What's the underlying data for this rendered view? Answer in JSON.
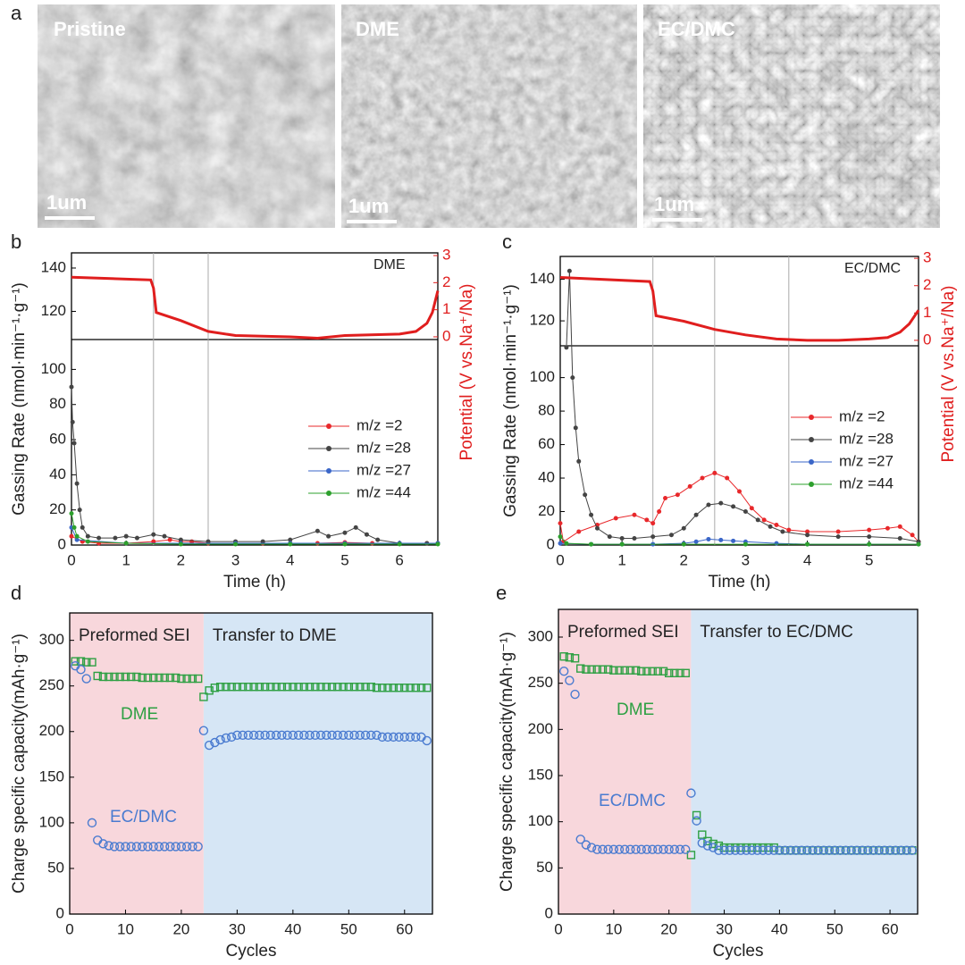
{
  "panel_labels": [
    "a",
    "b",
    "c",
    "d",
    "e"
  ],
  "sem_images": [
    {
      "label": "Pristine",
      "scale": "1um"
    },
    {
      "label": "DME",
      "scale": "1um"
    },
    {
      "label": "EC/DMC",
      "scale": "1um"
    }
  ],
  "chart_data": [
    {
      "type": "line",
      "annotation": "DME",
      "x_label": "Time (h)",
      "y_label": "Gassing Rate (nmol·min⁻¹·g⁻¹)",
      "y2_label": "Potential (V vs.Na⁺/Na)",
      "xlim": [
        0,
        6.7
      ],
      "xticks": [
        0,
        1,
        2,
        3,
        4,
        5,
        6
      ],
      "ylim": [
        0,
        117
      ],
      "yticks": [
        0,
        20,
        40,
        60,
        80,
        100
      ],
      "ylim_top": [
        107,
        147
      ],
      "yticks_top": [
        120,
        140
      ],
      "y2lim": [
        -0.1,
        3.1
      ],
      "y2ticks": [
        0,
        1,
        2,
        3
      ],
      "vlines": [
        1.5,
        2.5
      ],
      "series": [
        {
          "name": "m/z =2",
          "color": "#e8282b",
          "x": [
            0,
            0.2,
            0.5,
            1,
            1.5,
            1.8,
            2,
            2.2,
            2.5,
            3,
            3.5,
            4,
            4.5,
            5,
            5.5,
            6,
            6.5,
            6.7
          ],
          "values": [
            5,
            2,
            1,
            1,
            2,
            3,
            2,
            2,
            1,
            1,
            1,
            1,
            1,
            1.5,
            1,
            1,
            1,
            1
          ]
        },
        {
          "name": "m/z =28",
          "color": "#444444",
          "x": [
            0,
            0.02,
            0.05,
            0.1,
            0.15,
            0.2,
            0.3,
            0.5,
            0.8,
            1,
            1.2,
            1.5,
            1.7,
            2,
            2.5,
            3,
            3.5,
            4,
            4.5,
            4.7,
            5,
            5.2,
            5.4,
            5.6,
            6,
            6.5,
            6.7
          ],
          "values": [
            90,
            70,
            58,
            35,
            20,
            10,
            5,
            4,
            4,
            5,
            4,
            6,
            5,
            3,
            2,
            2,
            2,
            3,
            8,
            5,
            7,
            10,
            6,
            3,
            1,
            1,
            1
          ]
        },
        {
          "name": "m/z =27",
          "color": "#3a66c8",
          "x": [
            0,
            0.1,
            1,
            2,
            3,
            4,
            5,
            6,
            6.7
          ],
          "values": [
            10,
            3,
            1,
            1,
            1,
            1,
            1,
            1,
            1
          ]
        },
        {
          "name": "m/z =44",
          "color": "#2ca02c",
          "x": [
            0,
            0.05,
            0.1,
            0.3,
            1,
            2,
            3,
            4,
            5,
            6,
            6.7
          ],
          "values": [
            18,
            10,
            5,
            2,
            1,
            0.5,
            0.5,
            0.5,
            0.5,
            0.5,
            0.5
          ]
        },
        {
          "axis": "y2",
          "color": "#e01e1e",
          "x": [
            0,
            1.45,
            1.5,
            1.55,
            2,
            2.5,
            3,
            4,
            4.5,
            5,
            6,
            6.3,
            6.5,
            6.6,
            6.7
          ],
          "values": [
            2.2,
            2.1,
            1.8,
            0.9,
            0.6,
            0.2,
            0.05,
            0,
            -0.05,
            0.05,
            0.1,
            0.2,
            0.5,
            0.9,
            1.7
          ]
        }
      ]
    },
    {
      "type": "line",
      "annotation": "EC/DMC",
      "x_label": "Time (h)",
      "y_label": "Gassing Rate (nmol·min⁻¹·g⁻¹)",
      "y2_label": "Potential (V vs.Na⁺/Na)",
      "xlim": [
        0,
        5.8
      ],
      "xticks": [
        0,
        1,
        2,
        3,
        4,
        5
      ],
      "ylim": [
        0,
        119
      ],
      "yticks": [
        0,
        20,
        40,
        60,
        80,
        100
      ],
      "ylim_top": [
        108,
        151
      ],
      "yticks_top": [
        120,
        140
      ],
      "y2lim": [
        -0.2,
        3.07
      ],
      "y2ticks": [
        0,
        1,
        2,
        3
      ],
      "vlines": [
        1.5,
        2.5,
        3.7
      ],
      "series": [
        {
          "name": "m/z =2",
          "color": "#e8282b",
          "x": [
            0,
            0.05,
            0.3,
            0.6,
            0.9,
            1.2,
            1.4,
            1.5,
            1.6,
            1.7,
            1.9,
            2.1,
            2.3,
            2.5,
            2.7,
            2.9,
            3.1,
            3.3,
            3.5,
            3.7,
            4,
            4.5,
            5,
            5.3,
            5.5,
            5.7,
            5.8
          ],
          "values": [
            13,
            2,
            8,
            12,
            16,
            18,
            15,
            13,
            20,
            28,
            30,
            35,
            40,
            43,
            40,
            32,
            22,
            15,
            12,
            9,
            8,
            8,
            9,
            10,
            11,
            6,
            2
          ]
        },
        {
          "name": "m/z =28",
          "color": "#444444",
          "x": [
            0.1,
            0.15,
            0.2,
            0.25,
            0.3,
            0.4,
            0.5,
            0.6,
            0.8,
            1,
            1.2,
            1.5,
            1.8,
            2,
            2.2,
            2.4,
            2.6,
            2.8,
            3,
            3.2,
            3.4,
            3.6,
            4,
            4.5,
            5,
            5.5,
            5.8
          ],
          "values": [
            118,
            144,
            100,
            70,
            50,
            30,
            18,
            10,
            5,
            4,
            4,
            5,
            6,
            10,
            18,
            24,
            25,
            23,
            20,
            15,
            11,
            8,
            6,
            5,
            5,
            4,
            2
          ]
        },
        {
          "name": "m/z =27",
          "color": "#3a66c8",
          "x": [
            0,
            0.5,
            1,
            1.5,
            2,
            2.2,
            2.4,
            2.6,
            2.8,
            3,
            3.5,
            4,
            5,
            5.8
          ],
          "values": [
            1,
            0.5,
            0.5,
            0.5,
            1,
            2,
            3.5,
            3,
            2.5,
            2,
            1,
            0.5,
            0.5,
            0.5
          ]
        },
        {
          "name": "m/z =44",
          "color": "#2ca02c",
          "x": [
            0,
            0.1,
            0.5,
            1,
            2,
            3,
            4,
            5,
            5.8
          ],
          "values": [
            5,
            1,
            0.5,
            0.5,
            0.5,
            0.5,
            0.5,
            0.5,
            0.5
          ]
        },
        {
          "axis": "y2",
          "color": "#e01e1e",
          "x": [
            0,
            1.45,
            1.5,
            1.55,
            2,
            2.5,
            3,
            3.5,
            4,
            4.5,
            5,
            5.3,
            5.5,
            5.65,
            5.8
          ],
          "values": [
            2.3,
            2.15,
            1.8,
            0.9,
            0.7,
            0.4,
            0.2,
            0.05,
            0,
            0,
            0.05,
            0.1,
            0.3,
            0.6,
            1.1
          ]
        }
      ]
    },
    {
      "type": "scatter",
      "x_label": "Cycles",
      "y_label": "Charge specific capacity(mAh·g⁻¹)",
      "xlim": [
        0,
        65
      ],
      "xticks": [
        0,
        10,
        20,
        30,
        40,
        50,
        60
      ],
      "ylim": [
        0,
        330
      ],
      "yticks": [
        0,
        50,
        100,
        150,
        200,
        250,
        300
      ],
      "regions": [
        {
          "label": "Preformed SEI",
          "from": 0,
          "to": 24,
          "color": "#f8d7dc"
        },
        {
          "label": "Transfer to DME",
          "from": 24,
          "to": 65,
          "color": "#d6e6f5"
        }
      ],
      "x": [
        1,
        2,
        3,
        4,
        5,
        6,
        7,
        8,
        9,
        10,
        11,
        12,
        13,
        14,
        15,
        16,
        17,
        18,
        19,
        20,
        21,
        22,
        23,
        24,
        25,
        26,
        27,
        28,
        29,
        30,
        31,
        32,
        33,
        34,
        35,
        36,
        37,
        38,
        39,
        40,
        41,
        42,
        43,
        44,
        45,
        46,
        47,
        48,
        49,
        50,
        51,
        52,
        53,
        54,
        55,
        56,
        57,
        58,
        59,
        60,
        61,
        62,
        63,
        64
      ],
      "series": [
        {
          "name": "DME",
          "color": "#2ea043",
          "marker": "square",
          "values": [
            277,
            277,
            276,
            276,
            261,
            260,
            260,
            260,
            260,
            260,
            260,
            260,
            259,
            259,
            259,
            259,
            259,
            259,
            259,
            258,
            258,
            258,
            258,
            238,
            245,
            248,
            249,
            249,
            249,
            249,
            249,
            249,
            249,
            249,
            249,
            249,
            249,
            249,
            249,
            249,
            249,
            249,
            249,
            249,
            249,
            249,
            249,
            249,
            249,
            249,
            249,
            249,
            249,
            249,
            248,
            248,
            248,
            248,
            248,
            248,
            248,
            248,
            248,
            248
          ]
        },
        {
          "name": "EC/DMC",
          "color": "#4a7bd0",
          "marker": "circle",
          "values": [
            272,
            268,
            258,
            100,
            81,
            77,
            75,
            74,
            74,
            74,
            74,
            74,
            74,
            74,
            74,
            74,
            74,
            74,
            74,
            74,
            74,
            74,
            74,
            201,
            185,
            188,
            191,
            193,
            194,
            196,
            196,
            196,
            196,
            196,
            196,
            196,
            196,
            196,
            196,
            196,
            196,
            196,
            196,
            196,
            196,
            196,
            196,
            196,
            196,
            196,
            196,
            196,
            196,
            196,
            196,
            194,
            194,
            194,
            194,
            194,
            194,
            194,
            194,
            190
          ]
        }
      ]
    },
    {
      "type": "scatter",
      "x_label": "Cycles",
      "y_label": "Charge specific capacity(mAh·g⁻¹)",
      "xlim": [
        0,
        65
      ],
      "xticks": [
        0,
        10,
        20,
        30,
        40,
        50,
        60
      ],
      "ylim": [
        0,
        330
      ],
      "yticks": [
        0,
        50,
        100,
        150,
        200,
        250,
        300
      ],
      "regions": [
        {
          "label": "Preformed SEI",
          "from": 0,
          "to": 24,
          "color": "#f8d7dc"
        },
        {
          "label": "Transfer to EC/DMC",
          "from": 24,
          "to": 65,
          "color": "#d6e6f5"
        }
      ],
      "x": [
        1,
        2,
        3,
        4,
        5,
        6,
        7,
        8,
        9,
        10,
        11,
        12,
        13,
        14,
        15,
        16,
        17,
        18,
        19,
        20,
        21,
        22,
        23,
        24,
        25,
        26,
        27,
        28,
        29,
        30,
        31,
        32,
        33,
        34,
        35,
        36,
        37,
        38,
        39,
        40,
        41,
        42,
        43,
        44,
        45,
        46,
        47,
        48,
        49,
        50,
        51,
        52,
        53,
        54,
        55,
        56,
        57,
        58,
        59,
        60,
        61,
        62,
        63,
        64
      ],
      "series": [
        {
          "name": "DME",
          "color": "#2ea043",
          "marker": "square",
          "values": [
            279,
            278,
            277,
            266,
            265,
            265,
            265,
            265,
            265,
            264,
            264,
            264,
            264,
            264,
            263,
            263,
            263,
            263,
            263,
            261,
            261,
            261,
            261,
            64,
            107,
            86,
            79,
            76,
            74,
            72,
            72,
            72,
            72,
            72,
            72,
            72,
            72,
            72,
            72,
            69,
            69,
            69,
            69,
            69,
            69,
            69,
            69,
            69,
            69,
            69,
            69,
            69,
            69,
            69,
            69,
            69,
            69,
            69,
            69,
            69,
            69,
            69,
            69,
            69
          ]
        },
        {
          "name": "EC/DMC",
          "color": "#4a7bd0",
          "marker": "circle",
          "values": [
            263,
            253,
            238,
            81,
            75,
            72,
            70,
            70,
            70,
            70,
            70,
            70,
            70,
            70,
            70,
            70,
            70,
            70,
            70,
            70,
            70,
            70,
            70,
            131,
            101,
            77,
            74,
            72,
            69,
            69,
            69,
            69,
            69,
            69,
            69,
            69,
            69,
            69,
            69,
            69,
            69,
            69,
            69,
            69,
            69,
            69,
            69,
            69,
            69,
            69,
            69,
            69,
            69,
            69,
            69,
            69,
            69,
            69,
            69,
            69,
            69,
            69,
            69,
            69
          ]
        }
      ]
    }
  ]
}
